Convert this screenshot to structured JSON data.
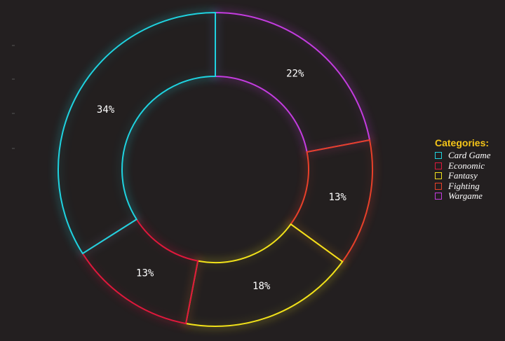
{
  "chart_data": {
    "type": "pie",
    "donut": true,
    "legend_title": "Categories:",
    "legend_position": "right",
    "categories": [
      "Card Game",
      "Economic",
      "Fantasy",
      "Fighting",
      "Wargame"
    ],
    "values": [
      34,
      13,
      18,
      13,
      22
    ],
    "labels": [
      "34%",
      "13%",
      "18%",
      "13%",
      "22%"
    ],
    "colors": [
      "#1fd3e0",
      "#e0183c",
      "#f2e21a",
      "#e8402a",
      "#c43ce0"
    ]
  }
}
